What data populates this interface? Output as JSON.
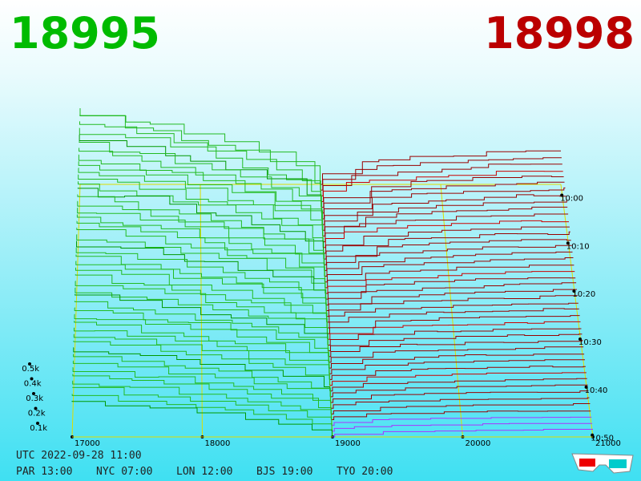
{
  "header": {
    "bid": "18995",
    "ask": "18998"
  },
  "axes": {
    "price_ticks": [
      17000,
      18000,
      19000,
      20000,
      21000
    ],
    "time_ticks": [
      "10:00",
      "10:10",
      "10:20",
      "10:30",
      "10:40",
      "10:50"
    ],
    "depth_ticks": [
      "0.1k",
      "0.2k",
      "0.3k",
      "0.4k",
      "0.5k"
    ]
  },
  "footer": {
    "utc": "UTC 2022-09-28 11:00",
    "cities": [
      "PAR 13:00",
      "NYC 07:00",
      "LON 12:00",
      "BJS 19:00",
      "TYO 20:00"
    ]
  }
}
